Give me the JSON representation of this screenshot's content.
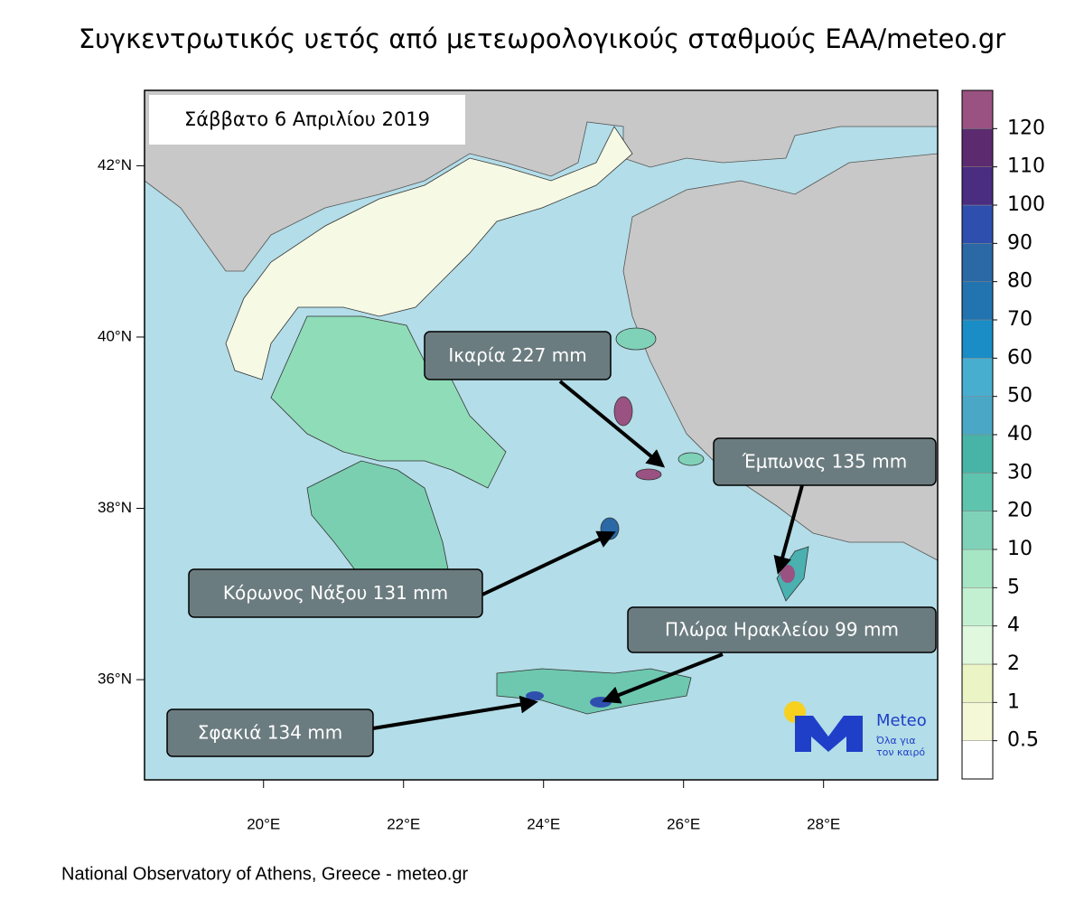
{
  "title": "Συγκεντρωτικός υετός από μετεωρολογικούς σταθμούς ΕΑΑ/meteo.gr",
  "date_label": "Σάββατο 6 Απριλίου 2019",
  "map": {
    "lonlim": [
      18.3,
      29.63
    ],
    "latlim": [
      34.83,
      42.88
    ],
    "lat_ticks": [
      {
        "value": 42,
        "label": "42°N"
      },
      {
        "value": 40,
        "label": "40°N"
      },
      {
        "value": 38,
        "label": "38°N"
      },
      {
        "value": 36,
        "label": "36°N"
      }
    ],
    "lon_ticks": [
      {
        "value": 20,
        "label": "20°E"
      },
      {
        "value": 22,
        "label": "22°E"
      },
      {
        "value": 24,
        "label": "24°E"
      },
      {
        "value": 26,
        "label": "26°E"
      },
      {
        "value": 28,
        "label": "28°E"
      }
    ]
  },
  "colorbar": {
    "levels": [
      0.5,
      1,
      2,
      4,
      5,
      10,
      20,
      30,
      40,
      50,
      60,
      70,
      80,
      90,
      100,
      110,
      120
    ],
    "colors": [
      "#ffffff",
      "#f4f8d6",
      "#eaf4c4",
      "#dff8de",
      "#c4f0d2",
      "#a6e6c4",
      "#7fd2b8",
      "#5fc4ae",
      "#48b4a8",
      "#4aa8c6",
      "#48aed0",
      "#1a8cc6",
      "#2274b0",
      "#2a68a6",
      "#2f4fae",
      "#4a2c80",
      "#5c2a6e",
      "#9a5282"
    ]
  },
  "annotations": [
    "Ικαρία 227 mm",
    "Έμπωνας 135 mm",
    "Κόρωνος Νάξου 131 mm",
    "Πλώρα Ηρακλείου 99 mm",
    "Σφακιά 134 mm"
  ],
  "logo": {
    "name": "Meteo",
    "tagline_1": "Όλα για",
    "tagline_2": "τον καιρό"
  },
  "footer": "National Observatory of Athens, Greece - meteo.gr"
}
